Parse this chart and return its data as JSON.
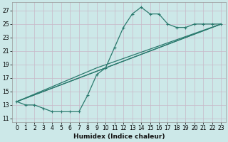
{
  "xlabel": "Humidex (Indice chaleur)",
  "bg_color": "#cce8e8",
  "grid_major_color": "#aacccc",
  "grid_minor_color": "#ddeeff",
  "line_color": "#2a7a6e",
  "xlim": [
    -0.5,
    23.5
  ],
  "ylim": [
    10.5,
    28.2
  ],
  "xticks": [
    0,
    1,
    2,
    3,
    4,
    5,
    6,
    7,
    8,
    9,
    10,
    11,
    12,
    13,
    14,
    15,
    16,
    17,
    18,
    19,
    20,
    21,
    22,
    23
  ],
  "yticks": [
    11,
    13,
    15,
    17,
    19,
    21,
    23,
    25,
    27
  ],
  "series1_x": [
    0,
    1,
    2,
    3,
    4,
    5,
    6,
    7,
    8,
    9,
    10,
    11,
    12,
    13,
    14,
    15,
    16,
    17,
    18,
    19,
    20,
    21,
    22,
    23
  ],
  "series1_y": [
    13.5,
    13.0,
    13.0,
    12.5,
    12.0,
    12.0,
    12.0,
    12.0,
    14.5,
    17.5,
    18.5,
    21.5,
    24.5,
    26.5,
    27.5,
    26.5,
    26.5,
    25.0,
    24.5,
    24.5,
    25.0,
    25.0,
    25.0,
    25.0
  ],
  "series2_x": [
    0,
    23
  ],
  "series2_y": [
    13.5,
    25.0
  ],
  "series3_x": [
    0,
    8,
    23
  ],
  "series3_y": [
    13.5,
    17.5,
    25.0
  ],
  "series4_x": [
    0,
    9,
    23
  ],
  "series4_y": [
    13.5,
    18.5,
    25.0
  ]
}
